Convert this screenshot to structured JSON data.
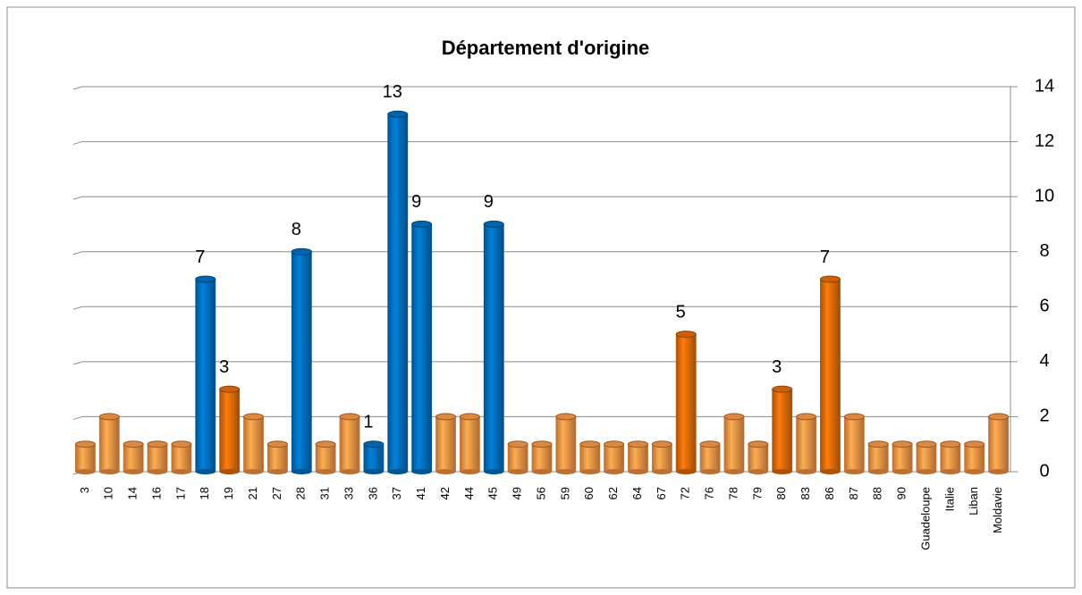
{
  "chart_data": {
    "type": "bar",
    "title": "Département d'origine",
    "categories": [
      "3",
      "10",
      "14",
      "16",
      "17",
      "18",
      "19",
      "21",
      "27",
      "28",
      "31",
      "33",
      "36",
      "37",
      "41",
      "42",
      "44",
      "45",
      "49",
      "56",
      "59",
      "60",
      "62",
      "64",
      "67",
      "72",
      "76",
      "78",
      "79",
      "80",
      "83",
      "86",
      "87",
      "88",
      "90",
      "Guadeloupe",
      "Italie",
      "Liban",
      "Moldavie"
    ],
    "values": [
      1,
      2,
      1,
      1,
      1,
      7,
      3,
      2,
      1,
      8,
      1,
      2,
      1,
      13,
      9,
      2,
      2,
      9,
      1,
      1,
      2,
      1,
      1,
      1,
      1,
      5,
      1,
      2,
      1,
      3,
      2,
      7,
      2,
      1,
      1,
      1,
      1,
      1,
      2
    ],
    "value_labels": [
      null,
      null,
      null,
      null,
      null,
      "7",
      "3",
      null,
      null,
      "8",
      null,
      null,
      "1",
      "13",
      "9",
      null,
      null,
      "9",
      null,
      null,
      null,
      null,
      null,
      null,
      null,
      "5",
      null,
      null,
      null,
      "3",
      null,
      "7",
      null,
      null,
      null,
      null,
      null,
      null,
      null
    ],
    "colors": [
      "#f79646",
      "#f79646",
      "#f79646",
      "#f79646",
      "#f79646",
      "#0070c0",
      "#e46c0a",
      "#f79646",
      "#f79646",
      "#0070c0",
      "#f79646",
      "#f79646",
      "#0070c0",
      "#0070c0",
      "#0070c0",
      "#f79646",
      "#f79646",
      "#0070c0",
      "#f79646",
      "#f79646",
      "#f79646",
      "#f79646",
      "#f79646",
      "#f79646",
      "#f79646",
      "#e46c0a",
      "#f79646",
      "#f79646",
      "#f79646",
      "#e46c0a",
      "#f79646",
      "#e46c0a",
      "#f79646",
      "#f79646",
      "#f79646",
      "#f79646",
      "#f79646",
      "#f79646",
      "#f79646"
    ],
    "ylim": [
      0,
      14
    ],
    "yticks": [
      0,
      2,
      4,
      6,
      8,
      10,
      12,
      14
    ],
    "grid": true,
    "y_axis_side": "right"
  }
}
